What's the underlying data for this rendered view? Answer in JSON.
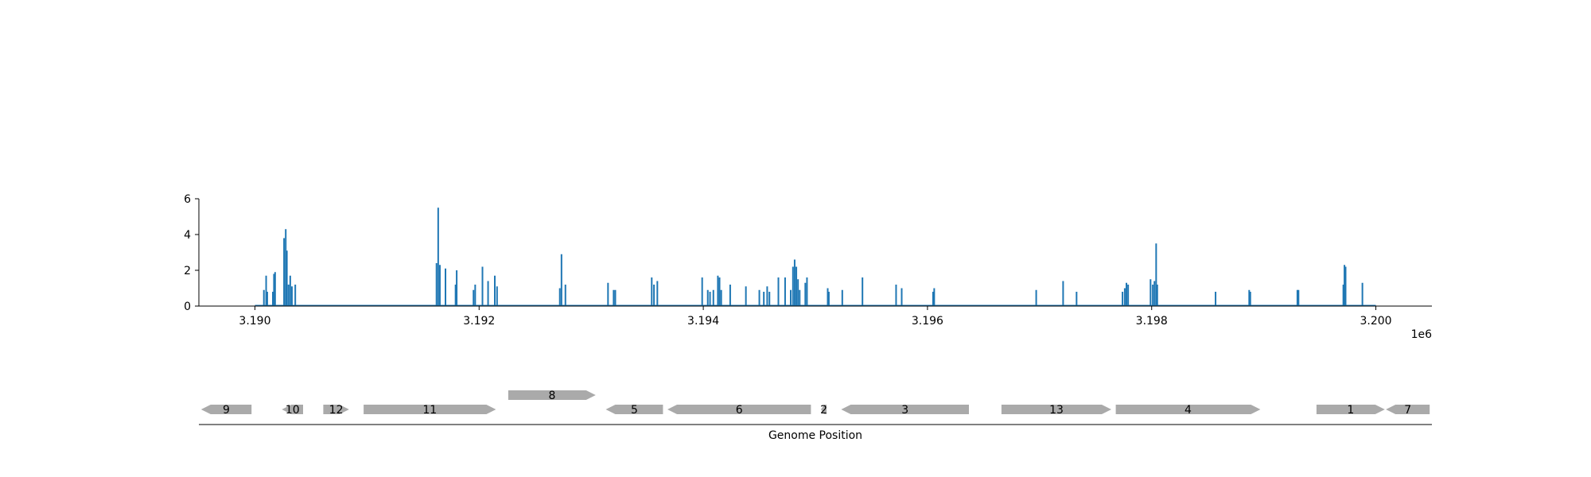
{
  "chart_data": [
    {
      "type": "bar",
      "title": "",
      "xlabel": "",
      "ylabel": "",
      "x_offset_label": "1e6",
      "xlim": [
        3189500,
        3200500
      ],
      "ylim": [
        0,
        6
      ],
      "x_ticks": [
        3190000,
        3192000,
        3194000,
        3196000,
        3198000,
        3200000
      ],
      "x_tick_labels": [
        "3.190",
        "3.192",
        "3.194",
        "3.196",
        "3.198",
        "3.200"
      ],
      "y_ticks": [
        0,
        2,
        4,
        6
      ],
      "y_tick_labels": [
        "0",
        "2",
        "4",
        "6"
      ],
      "color": "#1f77b4",
      "baseline_x_range": [
        3190000,
        3200000
      ],
      "points": [
        {
          "x": 3190080,
          "y": 0.9
        },
        {
          "x": 3190100,
          "y": 1.7
        },
        {
          "x": 3190110,
          "y": 0.8
        },
        {
          "x": 3190160,
          "y": 0.8
        },
        {
          "x": 3190170,
          "y": 1.8
        },
        {
          "x": 3190180,
          "y": 1.9
        },
        {
          "x": 3190260,
          "y": 3.8
        },
        {
          "x": 3190275,
          "y": 4.3
        },
        {
          "x": 3190285,
          "y": 3.1
        },
        {
          "x": 3190300,
          "y": 1.2
        },
        {
          "x": 3190315,
          "y": 1.7
        },
        {
          "x": 3190330,
          "y": 1.1
        },
        {
          "x": 3190360,
          "y": 1.2
        },
        {
          "x": 3191620,
          "y": 2.4
        },
        {
          "x": 3191635,
          "y": 5.5
        },
        {
          "x": 3191650,
          "y": 2.3
        },
        {
          "x": 3191700,
          "y": 2.1
        },
        {
          "x": 3191790,
          "y": 1.2
        },
        {
          "x": 3191800,
          "y": 2.0
        },
        {
          "x": 3191950,
          "y": 0.9
        },
        {
          "x": 3191965,
          "y": 1.2
        },
        {
          "x": 3192030,
          "y": 2.2
        },
        {
          "x": 3192080,
          "y": 1.4
        },
        {
          "x": 3192140,
          "y": 1.7
        },
        {
          "x": 3192160,
          "y": 1.1
        },
        {
          "x": 3192720,
          "y": 1.0
        },
        {
          "x": 3192735,
          "y": 2.9
        },
        {
          "x": 3192770,
          "y": 1.2
        },
        {
          "x": 3193150,
          "y": 1.3
        },
        {
          "x": 3193200,
          "y": 0.9
        },
        {
          "x": 3193215,
          "y": 0.9
        },
        {
          "x": 3193540,
          "y": 1.6
        },
        {
          "x": 3193560,
          "y": 1.2
        },
        {
          "x": 3193590,
          "y": 1.4
        },
        {
          "x": 3193990,
          "y": 1.6
        },
        {
          "x": 3194040,
          "y": 0.9
        },
        {
          "x": 3194060,
          "y": 0.8
        },
        {
          "x": 3194090,
          "y": 0.9
        },
        {
          "x": 3194130,
          "y": 1.7
        },
        {
          "x": 3194145,
          "y": 1.6
        },
        {
          "x": 3194160,
          "y": 0.9
        },
        {
          "x": 3194240,
          "y": 1.2
        },
        {
          "x": 3194380,
          "y": 1.1
        },
        {
          "x": 3194500,
          "y": 0.9
        },
        {
          "x": 3194540,
          "y": 0.8
        },
        {
          "x": 3194570,
          "y": 1.1
        },
        {
          "x": 3194590,
          "y": 0.8
        },
        {
          "x": 3194670,
          "y": 1.6
        },
        {
          "x": 3194730,
          "y": 1.6
        },
        {
          "x": 3194780,
          "y": 0.9
        },
        {
          "x": 3194800,
          "y": 2.2
        },
        {
          "x": 3194815,
          "y": 2.6
        },
        {
          "x": 3194830,
          "y": 2.2
        },
        {
          "x": 3194845,
          "y": 1.5
        },
        {
          "x": 3194860,
          "y": 0.9
        },
        {
          "x": 3194910,
          "y": 1.3
        },
        {
          "x": 3194925,
          "y": 1.6
        },
        {
          "x": 3195110,
          "y": 1.0
        },
        {
          "x": 3195120,
          "y": 0.8
        },
        {
          "x": 3195240,
          "y": 0.9
        },
        {
          "x": 3195420,
          "y": 1.6
        },
        {
          "x": 3195720,
          "y": 1.2
        },
        {
          "x": 3195770,
          "y": 1.0
        },
        {
          "x": 3196050,
          "y": 0.8
        },
        {
          "x": 3196060,
          "y": 1.0
        },
        {
          "x": 3196970,
          "y": 0.9
        },
        {
          "x": 3197210,
          "y": 1.4
        },
        {
          "x": 3197330,
          "y": 0.8
        },
        {
          "x": 3197740,
          "y": 0.8
        },
        {
          "x": 3197760,
          "y": 1.0
        },
        {
          "x": 3197775,
          "y": 1.3
        },
        {
          "x": 3197790,
          "y": 1.2
        },
        {
          "x": 3197990,
          "y": 1.5
        },
        {
          "x": 3198010,
          "y": 1.2
        },
        {
          "x": 3198025,
          "y": 1.4
        },
        {
          "x": 3198040,
          "y": 3.5
        },
        {
          "x": 3198050,
          "y": 1.2
        },
        {
          "x": 3198570,
          "y": 0.8
        },
        {
          "x": 3198870,
          "y": 0.9
        },
        {
          "x": 3198880,
          "y": 0.8
        },
        {
          "x": 3199300,
          "y": 0.9
        },
        {
          "x": 3199310,
          "y": 0.9
        },
        {
          "x": 3199710,
          "y": 1.2
        },
        {
          "x": 3199720,
          "y": 2.3
        },
        {
          "x": 3199730,
          "y": 2.2
        },
        {
          "x": 3199880,
          "y": 1.3
        }
      ]
    },
    {
      "type": "gene-track",
      "xlabel": "Genome Position",
      "xlim": [
        3189500,
        3200500
      ],
      "color": "#aaaaaa",
      "genes": [
        {
          "label": "9",
          "start": 3189520,
          "end": 3189970,
          "strand": "-",
          "level": 0
        },
        {
          "label": "10",
          "start": 3190240,
          "end": 3190430,
          "strand": "-",
          "level": 0
        },
        {
          "label": "12",
          "start": 3190610,
          "end": 3190840,
          "strand": "+",
          "level": 0
        },
        {
          "label": "11",
          "start": 3190970,
          "end": 3192150,
          "strand": "+",
          "level": 0
        },
        {
          "label": "8",
          "start": 3192260,
          "end": 3193040,
          "strand": "+",
          "level": 1
        },
        {
          "label": "5",
          "start": 3193130,
          "end": 3193640,
          "strand": "-",
          "level": 0
        },
        {
          "label": "6",
          "start": 3193680,
          "end": 3194960,
          "strand": "-",
          "level": 0
        },
        {
          "label": "2",
          "start": 3195050,
          "end": 3195100,
          "strand": "-",
          "level": 0
        },
        {
          "label": "3",
          "start": 3195230,
          "end": 3196370,
          "strand": "-",
          "level": 0
        },
        {
          "label": "13",
          "start": 3196660,
          "end": 3197640,
          "strand": "+",
          "level": 0
        },
        {
          "label": "4",
          "start": 3197680,
          "end": 3198970,
          "strand": "+",
          "level": 0
        },
        {
          "label": "1",
          "start": 3199470,
          "end": 3200080,
          "strand": "+",
          "level": 0
        },
        {
          "label": "7",
          "start": 3200090,
          "end": 3200480,
          "strand": "-",
          "level": 0
        }
      ]
    }
  ]
}
